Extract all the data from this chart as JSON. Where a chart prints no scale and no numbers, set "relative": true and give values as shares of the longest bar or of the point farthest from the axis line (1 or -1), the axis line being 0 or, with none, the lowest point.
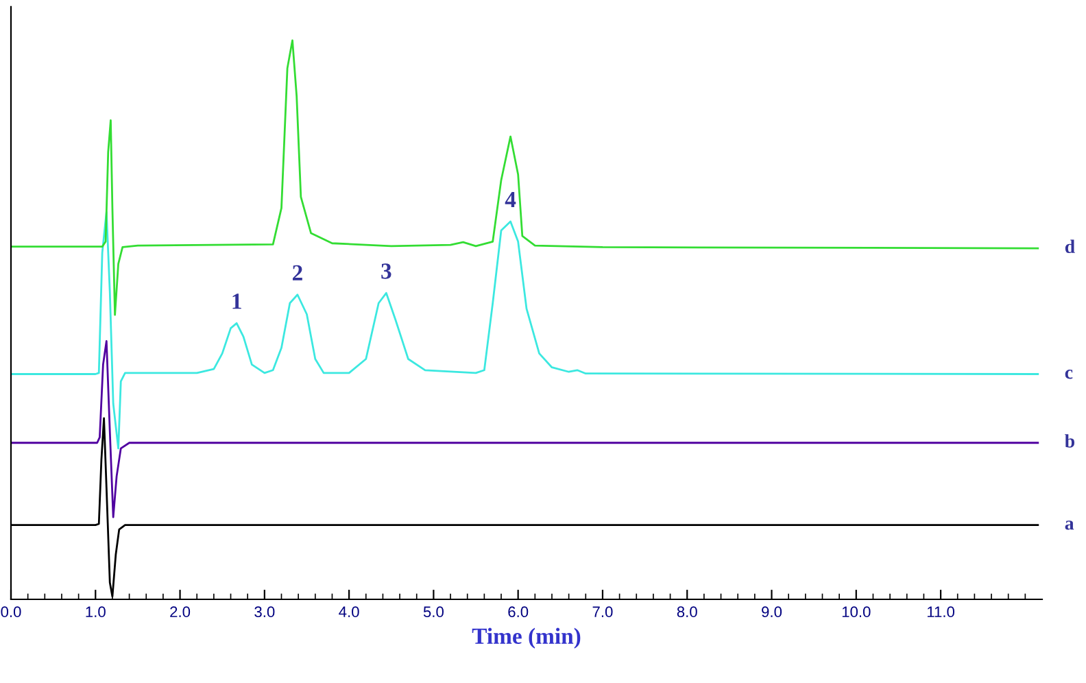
{
  "chart_data": {
    "type": "line",
    "relative": true,
    "xlabel": "Time (min)",
    "xlim": [
      0,
      12.2
    ],
    "xticks": [
      {
        "value": 0,
        "label": "0.0"
      },
      {
        "value": 1,
        "label": "1.0"
      },
      {
        "value": 2,
        "label": "2.0"
      },
      {
        "value": 3,
        "label": "3.0"
      },
      {
        "value": 4,
        "label": "4.0"
      },
      {
        "value": 5,
        "label": "5.0"
      },
      {
        "value": 6,
        "label": "6.0"
      },
      {
        "value": 7,
        "label": "7.0"
      },
      {
        "value": 8,
        "label": "8.0"
      },
      {
        "value": 9,
        "label": "9.0"
      },
      {
        "value": 10,
        "label": "10.0"
      },
      {
        "value": 11,
        "label": "11.0"
      },
      {
        "value": 0.2,
        "label": null
      },
      {
        "value": 0.4,
        "label": null
      },
      {
        "value": 0.6,
        "label": null
      },
      {
        "value": 0.8,
        "label": null
      },
      {
        "value": 1.2,
        "label": null
      },
      {
        "value": 1.4,
        "label": null
      },
      {
        "value": 1.6,
        "label": null
      },
      {
        "value": 1.8,
        "label": null
      },
      {
        "value": 2.2,
        "label": null
      },
      {
        "value": 2.4,
        "label": null
      },
      {
        "value": 2.6,
        "label": null
      },
      {
        "value": 2.8,
        "label": null
      },
      {
        "value": 3.2,
        "label": null
      },
      {
        "value": 3.4,
        "label": null
      },
      {
        "value": 3.6,
        "label": null
      },
      {
        "value": 3.8,
        "label": null
      },
      {
        "value": 4.2,
        "label": null
      },
      {
        "value": 4.4,
        "label": null
      },
      {
        "value": 4.6,
        "label": null
      },
      {
        "value": 4.8,
        "label": null
      },
      {
        "value": 5.2,
        "label": null
      },
      {
        "value": 5.4,
        "label": null
      },
      {
        "value": 5.6,
        "label": null
      },
      {
        "value": 5.8,
        "label": null
      },
      {
        "value": 6.2,
        "label": null
      },
      {
        "value": 6.4,
        "label": null
      },
      {
        "value": 6.6,
        "label": null
      },
      {
        "value": 6.8,
        "label": null
      },
      {
        "value": 7.2,
        "label": null
      },
      {
        "value": 7.4,
        "label": null
      },
      {
        "value": 7.6,
        "label": null
      },
      {
        "value": 7.8,
        "label": null
      },
      {
        "value": 8.2,
        "label": null
      },
      {
        "value": 8.4,
        "label": null
      },
      {
        "value": 8.6,
        "label": null
      },
      {
        "value": 8.8,
        "label": null
      },
      {
        "value": 9.2,
        "label": null
      },
      {
        "value": 9.4,
        "label": null
      },
      {
        "value": 9.6,
        "label": null
      },
      {
        "value": 9.8,
        "label": null
      },
      {
        "value": 10.2,
        "label": null
      },
      {
        "value": 10.4,
        "label": null
      },
      {
        "value": 10.6,
        "label": null
      },
      {
        "value": 10.8,
        "label": null
      },
      {
        "value": 11.2,
        "label": null
      },
      {
        "value": 11.4,
        "label": null
      },
      {
        "value": 11.6,
        "label": null
      },
      {
        "value": 11.8,
        "label": null
      },
      {
        "value": 12.0,
        "label": null
      }
    ],
    "tick_labels": "x",
    "grid": false,
    "legend": false,
    "marker": "none",
    "line_style": "solid",
    "series": [
      {
        "name": "a",
        "color": "#000000",
        "x": [
          0,
          1.0,
          1.04,
          1.07,
          1.1,
          1.13,
          1.17,
          1.2,
          1.24,
          1.28,
          1.35,
          12.15
        ],
        "values": [
          0.133,
          0.133,
          0.135,
          0.25,
          0.324,
          0.2,
          0.03,
          0.005,
          0.08,
          0.125,
          0.133,
          0.133
        ]
      },
      {
        "name": "b",
        "color": "#5000a0",
        "x": [
          0,
          1.02,
          1.05,
          1.09,
          1.13,
          1.17,
          1.21,
          1.25,
          1.3,
          1.4,
          12.15
        ],
        "values": [
          0.28,
          0.28,
          0.29,
          0.42,
          0.462,
          0.3,
          0.147,
          0.22,
          0.27,
          0.28,
          0.28
        ]
      },
      {
        "name": "c",
        "color": "#3ce8e0",
        "x": [
          0,
          1.0,
          1.04,
          1.08,
          1.13,
          1.17,
          1.21,
          1.27,
          1.3,
          1.35,
          2.2,
          2.4,
          2.5,
          2.6,
          2.67,
          2.75,
          2.85,
          3.0,
          3.1,
          3.2,
          3.3,
          3.39,
          3.5,
          3.6,
          3.7,
          4.0,
          4.2,
          4.35,
          4.44,
          4.55,
          4.7,
          4.9,
          5.5,
          5.6,
          5.7,
          5.8,
          5.91,
          6.0,
          6.1,
          6.25,
          6.4,
          6.6,
          6.7,
          6.8,
          12.15
        ],
        "values": [
          0.403,
          0.403,
          0.405,
          0.62,
          0.693,
          0.55,
          0.35,
          0.27,
          0.39,
          0.405,
          0.405,
          0.412,
          0.44,
          0.485,
          0.494,
          0.47,
          0.42,
          0.405,
          0.41,
          0.45,
          0.53,
          0.545,
          0.51,
          0.43,
          0.405,
          0.405,
          0.43,
          0.53,
          0.548,
          0.5,
          0.43,
          0.41,
          0.405,
          0.41,
          0.53,
          0.66,
          0.676,
          0.64,
          0.52,
          0.44,
          0.415,
          0.407,
          0.41,
          0.404,
          0.403
        ]
      },
      {
        "name": "d",
        "color": "#33dd33",
        "x": [
          0,
          1.08,
          1.12,
          1.15,
          1.18,
          1.2,
          1.23,
          1.27,
          1.32,
          1.5,
          3.1,
          3.2,
          3.27,
          3.33,
          3.38,
          3.43,
          3.55,
          3.8,
          4.5,
          5.2,
          5.35,
          5.5,
          5.7,
          5.8,
          5.91,
          6.0,
          6.05,
          6.2,
          7.0,
          12.15
        ],
        "values": [
          0.631,
          0.631,
          0.64,
          0.8,
          0.857,
          0.7,
          0.509,
          0.6,
          0.63,
          0.633,
          0.635,
          0.7,
          0.95,
          1.0,
          0.9,
          0.72,
          0.655,
          0.637,
          0.632,
          0.634,
          0.639,
          0.632,
          0.64,
          0.75,
          0.828,
          0.76,
          0.65,
          0.633,
          0.63,
          0.628
        ]
      }
    ],
    "annotations": [
      {
        "text": "1",
        "x": 2.67,
        "y": 0.494
      },
      {
        "text": "2",
        "x": 3.39,
        "y": 0.545
      },
      {
        "text": "3",
        "x": 4.44,
        "y": 0.548
      },
      {
        "text": "4",
        "x": 5.91,
        "y": 0.676
      }
    ]
  }
}
